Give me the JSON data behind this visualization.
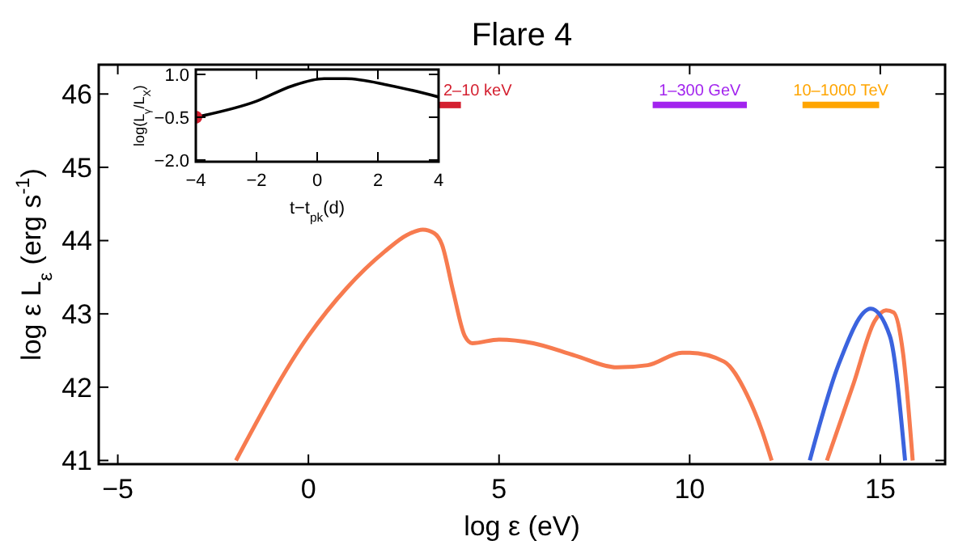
{
  "chart_data": [
    {
      "type": "line",
      "title": "Flare 4",
      "xlabel": "log ε (eV)",
      "ylabel": "log ε L$_{ε}$ (erg s$^{-1}$)",
      "xlim": [
        -5.5,
        16.7
      ],
      "ylim": [
        40.95,
        46.4
      ],
      "xticks": [
        {
          "value": -5,
          "label": "−5"
        },
        0,
        5,
        10,
        15
      ],
      "yticks": [
        41,
        42,
        43,
        44,
        45,
        46
      ],
      "series": [
        {
          "color": "#f77b4f",
          "x": [
            -1.9,
            0,
            1,
            2,
            2.6,
            3.0,
            3.3,
            3.5,
            3.8,
            4.1,
            4.3,
            5.0,
            5.9,
            7.0,
            8.1,
            8.9,
            9.8,
            10.0,
            10.9,
            11.5,
            11.9,
            12.15,
            12.8,
            13.6,
            14.3,
            14.85,
            15.15,
            15.35,
            15.6,
            15.85
          ],
          "values": [
            41.0,
            42.7,
            43.35,
            43.85,
            44.08,
            44.15,
            44.1,
            43.95,
            43.3,
            42.7,
            42.6,
            42.65,
            42.6,
            42.43,
            42.27,
            42.3,
            42.47,
            42.47,
            42.35,
            41.9,
            41.4,
            41.0,
            null,
            41.0,
            42.05,
            42.9,
            43.05,
            43.02,
            42.45,
            41.0
          ]
        },
        {
          "color": "#3b63de",
          "x": [
            13.15,
            13.9,
            14.75,
            15.25,
            15.65
          ],
          "values": [
            41.0,
            42.3,
            43.07,
            42.7,
            41.0
          ]
        },
        {
          "name": "2–10 keV",
          "color": "#d42030",
          "x": [
            3.33,
            4.0
          ],
          "values": [
            45.85,
            45.85
          ]
        },
        {
          "name": "1–300 GeV",
          "color": "#a224ee",
          "x": [
            9.03,
            11.5
          ],
          "values": [
            45.85,
            45.85
          ]
        },
        {
          "name": "10–1000 TeV",
          "color": "#ffa500",
          "x": [
            12.96,
            14.97
          ],
          "values": [
            45.85,
            45.85
          ]
        }
      ]
    },
    {
      "type": "line",
      "xlabel": "t−t$_{pk}$(d)",
      "ylabel": "log(L$_{γ}$/L$_{X}$)",
      "xlim": [
        -4,
        4
      ],
      "ylim": [
        -2.06,
        1.17
      ],
      "xticks": [
        {
          "value": -4,
          "label": "−4"
        },
        {
          "value": -2,
          "label": "−2"
        },
        0,
        2,
        4
      ],
      "yticks": [
        {
          "value": -2,
          "label": "−2.0"
        },
        {
          "value": -0.5,
          "label": "−0.5"
        },
        {
          "value": 1,
          "label": "1.0"
        }
      ],
      "series": [
        {
          "color": "#000000",
          "x": [
            -4,
            -2,
            -0.84,
            0.23,
            0.94,
            2.36,
            4
          ],
          "values": [
            -0.5,
            0.06,
            0.59,
            0.85,
            0.85,
            0.62,
            0.21
          ]
        },
        {
          "type": "scatter",
          "color": "#d42030",
          "marker": "circle",
          "x": [
            -4
          ],
          "values": [
            -0.5
          ]
        }
      ]
    }
  ]
}
